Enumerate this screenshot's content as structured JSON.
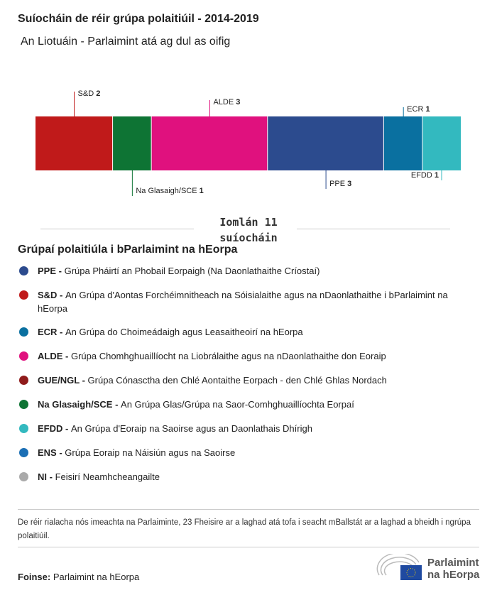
{
  "title": "Suíocháin de réir grúpa polaitiúil - 2014-2019",
  "subtitle": "An Liotuáin - Parlaimint atá ag dul as oifig",
  "chart_data": {
    "type": "bar",
    "orientation": "stacked-horizontal",
    "categories": [
      "S&D",
      "Na Glasaigh/SCE",
      "ALDE",
      "PPE",
      "ECR",
      "EFDD"
    ],
    "values": [
      2,
      1,
      3,
      3,
      1,
      1
    ],
    "colors": [
      "#c01a1a",
      "#0e7434",
      "#e0117e",
      "#2c4b8e",
      "#0a70a0",
      "#33b9bf"
    ],
    "label_side": [
      "top",
      "bottom",
      "top",
      "bottom",
      "top",
      "bottom"
    ],
    "total_label": "Iomlán 11 suíocháin",
    "total_line1": "Iomlán 11",
    "total_line2": "suíocháin"
  },
  "legend": {
    "heading": "Grúpaí polaitiúla i bParlaimint na hEorpa",
    "items": [
      {
        "abbr": "PPE - ",
        "text": "Grúpa Pháirtí an Phobail Eorpaigh (Na Daonlathaithe Críostaí)",
        "color": "#2c4b8e"
      },
      {
        "abbr": "S&D - ",
        "text": "An Grúpa d'Aontas Forchéimnitheach na Sóisialaithe agus na nDaonlathaithe i bParlaimint na hEorpa",
        "color": "#c01a1a"
      },
      {
        "abbr": "ECR - ",
        "text": "An Grúpa do Choimeádaigh agus Leasaitheoirí na hEorpa",
        "color": "#0a70a0"
      },
      {
        "abbr": "ALDE - ",
        "text": "Grúpa Chomhghuaillíocht na Liobrálaithe agus na nDaonlathaithe don Eoraip",
        "color": "#e0117e"
      },
      {
        "abbr": "GUE/NGL - ",
        "text": "Grúpa Cónasctha den Chlé Aontaithe Eorpach - den Chlé Ghlas Nordach",
        "color": "#8f1b1b"
      },
      {
        "abbr": "Na Glasaigh/SCE - ",
        "text": "An Grúpa Glas/Grúpa na Saor-Comhghuaillíochta Eorpaí",
        "color": "#0e7434"
      },
      {
        "abbr": "EFDD - ",
        "text": "An Grúpa d'Eoraip na Saoirse agus an Daonlathais Dhírigh",
        "color": "#33b9bf"
      },
      {
        "abbr": "ENS - ",
        "text": "Grúpa Eoraip na Náisiún agus na Saoirse",
        "color": "#1b6fb5"
      },
      {
        "abbr": "NI - ",
        "text": "Feisirí Neamhcheangailte",
        "color": "#aaaaaa"
      }
    ]
  },
  "note": "De réir rialacha nós imeachta na Parlaiminte, 23 Fheisire ar a laghad atá tofa i seacht mBallstát ar a laghad a bheidh i ngrúpa polaitiúil.",
  "source": {
    "label": "Foinse:",
    "text": " Parlaimint na hEorpa"
  },
  "logo": {
    "line1": "Parlaimint",
    "line2": "na hEorpa"
  }
}
